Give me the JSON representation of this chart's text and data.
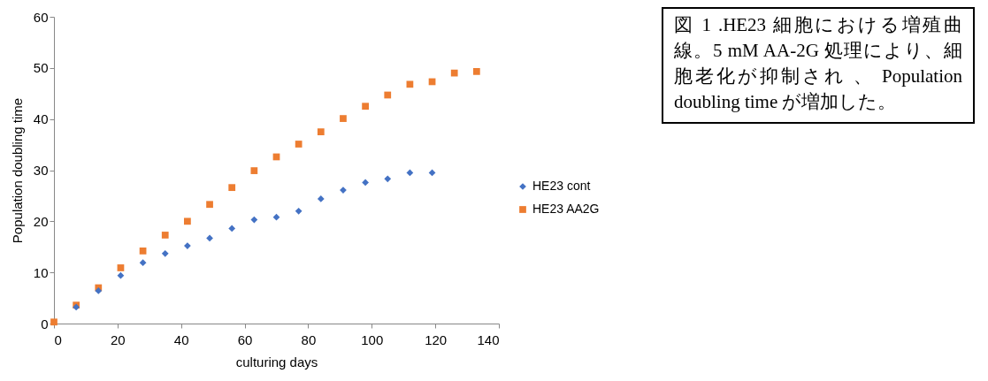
{
  "chart_data": {
    "type": "scatter",
    "xlabel": "culturing days",
    "ylabel": "Population doubling time",
    "annotations": [
      "図 1 .HE23 細胞における増殖曲線。5 mM AA-2G 処理により、細胞老化が抑制され 、 Population doubling time が増加した。"
    ],
    "xlim": [
      0,
      140
    ],
    "xticks": [
      0,
      20,
      40,
      60,
      80,
      100,
      120,
      140
    ],
    "ylim": [
      0,
      60
    ],
    "yticks": [
      0,
      10,
      20,
      30,
      40,
      50,
      60
    ],
    "grid": false,
    "legend": "right",
    "series": [
      {
        "name": "HE23 cont",
        "color": "#4472c4",
        "marker": "diamond",
        "x": [
          7,
          14,
          21,
          28,
          35,
          42,
          49,
          56,
          63,
          70,
          77,
          84,
          91,
          98,
          105,
          112,
          119
        ],
        "values": [
          3.2,
          6.4,
          9.4,
          11.9,
          13.7,
          15.2,
          16.7,
          18.6,
          20.3,
          20.8,
          22,
          24.4,
          26.1,
          27.6,
          28.3,
          29.5,
          29.5
        ]
      },
      {
        "name": "HE23 AA2G",
        "color": "#ed7d31",
        "marker": "square",
        "x": [
          0,
          7,
          14,
          21,
          28,
          35,
          42,
          49,
          56,
          63,
          70,
          77,
          84,
          91,
          98,
          105,
          112,
          119,
          126,
          133
        ],
        "values": [
          0.3,
          3.6,
          7,
          10.9,
          14.2,
          17.3,
          20,
          23.3,
          26.6,
          29.9,
          32.6,
          35.1,
          37.5,
          40.1,
          42.5,
          44.7,
          46.8,
          47.3,
          49,
          49.3
        ]
      }
    ]
  }
}
